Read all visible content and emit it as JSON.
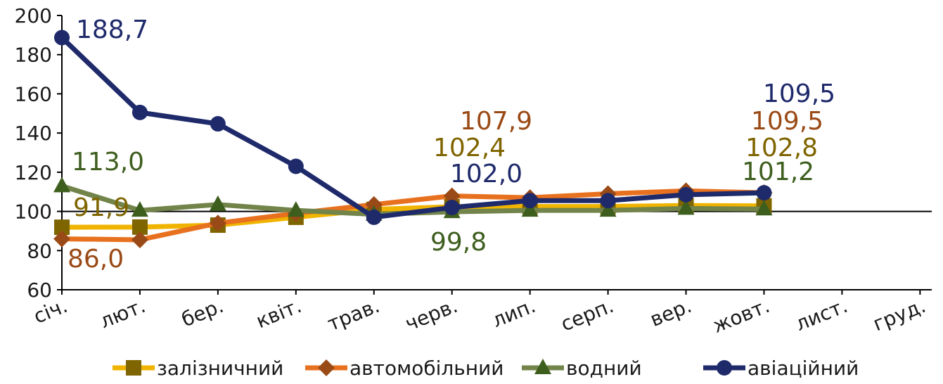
{
  "chart_data": {
    "type": "line",
    "categories": [
      "січ.",
      "лют.",
      "бер.",
      "квіт.",
      "трав.",
      "черв.",
      "лип.",
      "серп.",
      "вер.",
      "жовт.",
      "лист.",
      "груд."
    ],
    "ylim": [
      60,
      200
    ],
    "yticks": [
      60,
      80,
      100,
      120,
      140,
      160,
      180,
      200
    ],
    "ytick_labels": [
      "60",
      "80",
      "100",
      "120",
      "140",
      "160",
      "180",
      "200"
    ],
    "reference_line": 100,
    "legend_position": "bottom",
    "series": [
      {
        "name": "залізничний",
        "color": "#f0b400",
        "marker_color": "#7f6500",
        "marker": "square",
        "values": [
          91.9,
          92.0,
          93.0,
          97.0,
          101.0,
          102.4,
          102.5,
          102.5,
          103.0,
          102.8,
          null,
          null
        ],
        "labels": [
          {
            "index": 0,
            "text": "91,9"
          },
          {
            "index": 5,
            "text": "102,4"
          },
          {
            "index": 9,
            "text": "102,8"
          }
        ],
        "label_color": "#7f6500"
      },
      {
        "name": "автомобільний",
        "color": "#e8711f",
        "marker_color": "#9a4a16",
        "marker": "diamond",
        "values": [
          86.0,
          85.5,
          94.0,
          99.0,
          103.5,
          107.9,
          107.0,
          109.0,
          110.5,
          109.5,
          null,
          null
        ],
        "labels": [
          {
            "index": 0,
            "text": "86,0"
          },
          {
            "index": 5,
            "text": "107,9"
          },
          {
            "index": 9,
            "text": "109,5"
          }
        ],
        "label_color": "#9a4a16"
      },
      {
        "name": "водний",
        "color": "#72844a",
        "marker_color": "#3e5e1e",
        "marker": "triangle",
        "values": [
          113.0,
          100.5,
          103.5,
          100.5,
          98.5,
          99.8,
          100.5,
          100.5,
          101.5,
          101.2,
          null,
          null
        ],
        "labels": [
          {
            "index": 0,
            "text": "113,0"
          },
          {
            "index": 5,
            "text": "99,8"
          },
          {
            "index": 9,
            "text": "101,2"
          }
        ],
        "label_color": "#3e5e1e"
      },
      {
        "name": "авіаційний",
        "color": "#1f2a6b",
        "marker_color": "#1f2a6b",
        "marker": "circle",
        "values": [
          188.7,
          150.5,
          144.7,
          123.0,
          97.0,
          102.0,
          105.5,
          105.5,
          108.5,
          109.5,
          null,
          null
        ],
        "labels": [
          {
            "index": 0,
            "text": "188,7"
          },
          {
            "index": 5,
            "text": "102,0"
          },
          {
            "index": 9,
            "text": "109,5"
          }
        ],
        "label_color": "#1f2a6b"
      }
    ]
  }
}
